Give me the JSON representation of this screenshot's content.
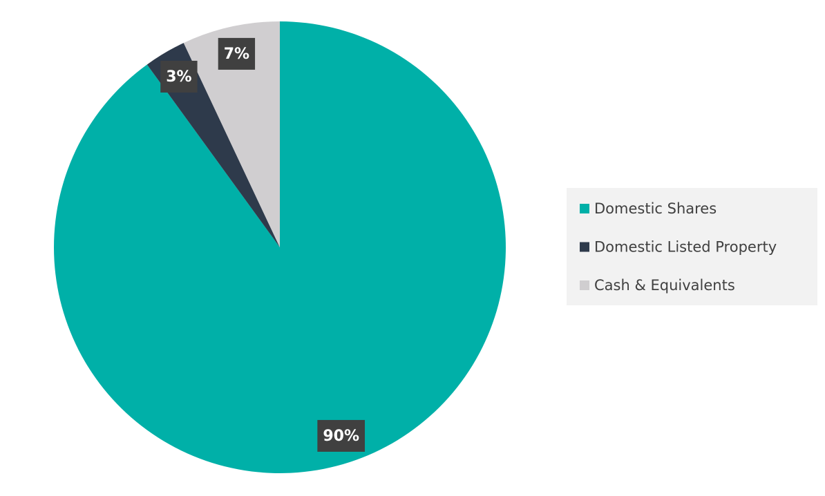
{
  "chart_data": {
    "type": "pie",
    "categories": [
      "Domestic Shares",
      "Domestic Listed Property",
      "Cash & Equivalents"
    ],
    "values": [
      90,
      3,
      7
    ],
    "value_labels": [
      "90%",
      "3%",
      "7%"
    ],
    "colors": [
      "#00b0a8",
      "#2e3a4b",
      "#d0ced0"
    ],
    "legend": "right"
  }
}
